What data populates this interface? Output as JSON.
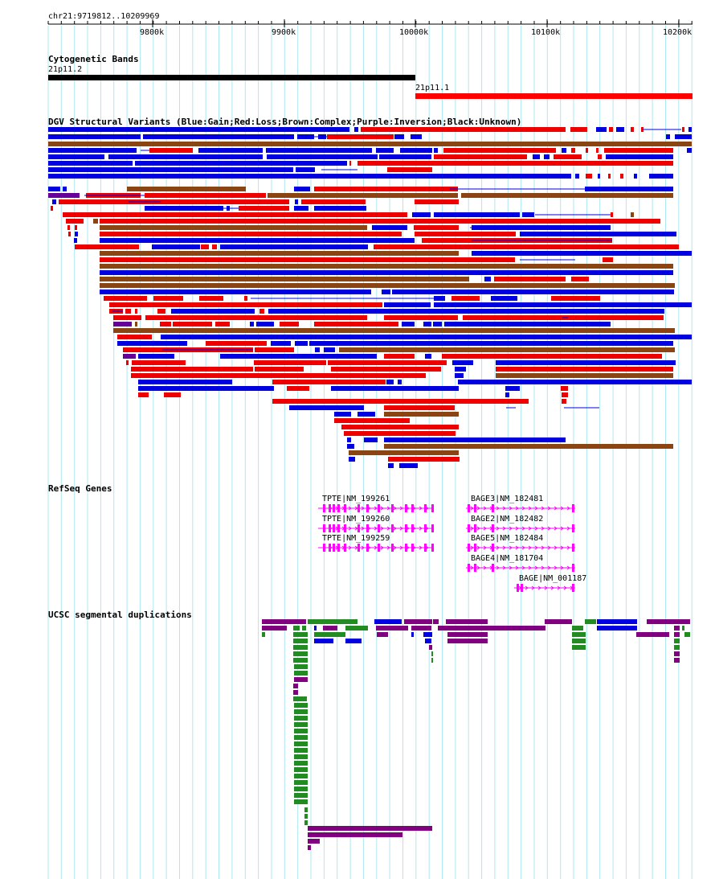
{
  "browser": {
    "coords": "chr21:9719812..10209969",
    "ruler_ticks": [
      "9800k",
      "9900k",
      "10000k",
      "10100k",
      "10200k"
    ],
    "tracks": {
      "cytoband": {
        "title": "Cytogenetic Bands",
        "bands": [
          {
            "name": "21p11.2",
            "color": "#000000"
          },
          {
            "name": "21p11.1",
            "color": "#ff0000"
          }
        ]
      },
      "dgv": {
        "title": "DGV Structural Variants (Blue:Gain;Red:Loss;Brown:Complex;Purple:Inversion;Black:Unknown)",
        "colors": {
          "gain": "#0000e0",
          "loss": "#ee0000",
          "complex": "#8b4513",
          "inversion": "#660099",
          "unknown": "#000000"
        }
      },
      "refseq": {
        "title": "RefSeq Genes",
        "color": "#ff00ff",
        "genes": [
          "TPTE|NM_199261",
          "TPTE|NM_199260",
          "TPTE|NM_199259",
          "BAGE3|NM_182481",
          "BAGE2|NM_182482",
          "BAGE5|NM_182484",
          "BAGE4|NM_181704",
          "BAGE|NM_001187"
        ]
      },
      "segdups": {
        "title": "UCSC segmental duplications",
        "colors": {
          "purple": "#800080",
          "green": "#228b22",
          "blue": "#0000e0"
        }
      }
    }
  }
}
